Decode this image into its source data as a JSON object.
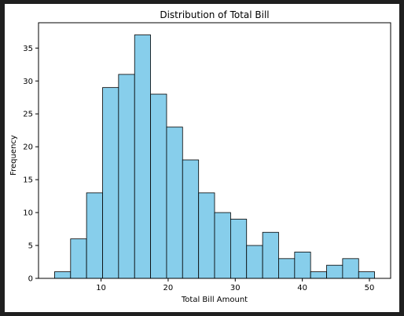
{
  "colors": {
    "window_frame": "#1f1f1f",
    "bar_fill": "#87ceeb",
    "bar_edge": "#000000"
  },
  "chart_data": {
    "type": "bar",
    "title": "Distribution of Total Bill",
    "xlabel": "Total Bill Amount",
    "ylabel": "Frequency",
    "bin_edges": [
      3.07,
      5.46,
      7.84,
      10.23,
      12.61,
      15.0,
      17.38,
      19.77,
      22.15,
      24.54,
      26.92,
      29.31,
      31.69,
      34.08,
      36.46,
      38.85,
      41.23,
      43.62,
      46.0,
      48.39,
      50.77
    ],
    "values": [
      1,
      6,
      13,
      29,
      31,
      37,
      28,
      23,
      18,
      13,
      10,
      9,
      5,
      7,
      3,
      4,
      1,
      2,
      3,
      1
    ],
    "xlim": [
      0.68,
      53.16
    ],
    "ylim": [
      0,
      38.85
    ],
    "xticks": [
      10,
      20,
      30,
      40,
      50
    ],
    "yticks": [
      0,
      5,
      10,
      15,
      20,
      25,
      30,
      35
    ],
    "grid": false,
    "legend": "none"
  }
}
